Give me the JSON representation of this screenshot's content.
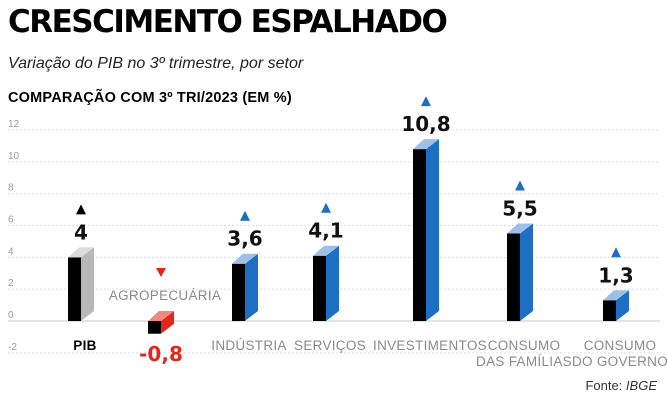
{
  "header": {
    "title": "CRESCIMENTO ESPALHADO",
    "subtitle": "Variação do PIB no 3º trimestre, por setor",
    "section_label": "COMPARAÇÃO COM 3º TRI/2023 (EM %)"
  },
  "footer": {
    "source_prefix": "Fonte:",
    "source_name": "IBGE"
  },
  "colors": {
    "front_black": "#000000",
    "pib_side": "#b8b8b8",
    "pib_top": "#dcdcdc",
    "positive_side": "#1c6fc2",
    "positive_top": "#9ec0e6",
    "positive_arrow": "#1c6fc2",
    "negative_side": "#e1261c",
    "negative_top": "#f08a80",
    "negative_arrow": "#e1261c",
    "negative_text": "#e1261c",
    "pib_arrow": "#000000",
    "category_text": "#8a8a8a",
    "grid": "#dddddd"
  },
  "chart_data": {
    "type": "bar",
    "title": "CRESCIMENTO ESPALHADO",
    "subtitle": "Variação do PIB no 3º trimestre, por setor",
    "ylabel": "COMPARAÇÃO COM 3º TRI/2023 (EM %)",
    "ylim": [
      -2,
      12
    ],
    "yticks": [
      12,
      10,
      8,
      6,
      4,
      2,
      0,
      -2
    ],
    "grid": true,
    "categories": [
      [
        "PIB"
      ],
      [
        "AGROPECUÁRIA"
      ],
      [
        "INDÚSTRIA"
      ],
      [
        "SERVIÇOS"
      ],
      [
        "INVESTIMENTOS"
      ],
      [
        "CONSUMO",
        "DAS FAMÍLIAS"
      ],
      [
        "CONSUMO",
        "DO GOVERNO"
      ]
    ],
    "values": [
      4,
      -0.8,
      3.6,
      4.1,
      10.8,
      5.5,
      1.3
    ],
    "value_labels": [
      "4",
      "-0,8",
      "3,6",
      "4,1",
      "10,8",
      "5,5",
      "1,3"
    ]
  }
}
